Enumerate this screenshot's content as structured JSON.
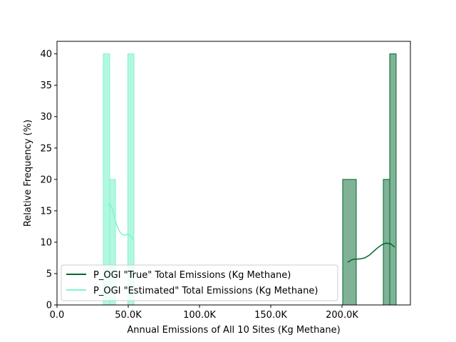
{
  "chart_data": {
    "type": "histogram",
    "title": "",
    "xlabel": "Annual Emissions of All 10 Sites (Kg Methane)",
    "ylabel": "Relative Frequency (%)",
    "xlim": [
      0,
      248000
    ],
    "ylim": [
      0,
      42
    ],
    "xticks": [
      0,
      50000,
      100000,
      150000,
      200000
    ],
    "xtick_labels": [
      "0.0",
      "50.0K",
      "100.0K",
      "150.0K",
      "200.0K"
    ],
    "yticks": [
      0,
      5,
      10,
      15,
      20,
      25,
      30,
      35,
      40
    ],
    "ytick_labels": [
      "0",
      "5",
      "10",
      "15",
      "20",
      "25",
      "30",
      "35",
      "40"
    ],
    "grid": false,
    "legend_position": "lower-left",
    "series": [
      {
        "name": "P_OGI \"True\" Total Emissions (Kg Methane)",
        "color": "#00662c",
        "fill": "#7fb296",
        "bins": [
          {
            "x0": 200500,
            "x1": 210000,
            "value": 20
          },
          {
            "x0": 229000,
            "x1": 233500,
            "value": 20
          },
          {
            "x0": 233500,
            "x1": 238000,
            "value": 40
          }
        ],
        "kde": {
          "x": [
            204000,
            206000,
            208000,
            210000,
            213000,
            216000,
            219000,
            222000,
            225000,
            228000,
            231000,
            234000,
            236000,
            237000
          ],
          "y": [
            6.8,
            7.1,
            7.3,
            7.3,
            7.35,
            7.5,
            7.9,
            8.5,
            9.1,
            9.6,
            9.85,
            9.75,
            9.4,
            9.2
          ]
        }
      },
      {
        "name": "P_OGI \"Estimated\" Total Emissions (Kg Methane)",
        "color": "#7ff5c8",
        "fill": "#b2f8df",
        "bins": [
          {
            "x0": 32500,
            "x1": 37000,
            "value": 40
          },
          {
            "x0": 37000,
            "x1": 41000,
            "value": 20
          },
          {
            "x0": 49700,
            "x1": 54000,
            "value": 40
          }
        ],
        "kde": {
          "x": [
            35500,
            37000,
            38500,
            40000,
            41500,
            43000,
            44500,
            46000,
            47500,
            49000,
            50500,
            52000,
            53500
          ],
          "y": [
            15.9,
            16.1,
            15.5,
            14.3,
            13.0,
            12.1,
            11.5,
            11.2,
            11.1,
            11.2,
            11.2,
            10.9,
            10.4
          ]
        }
      }
    ]
  }
}
